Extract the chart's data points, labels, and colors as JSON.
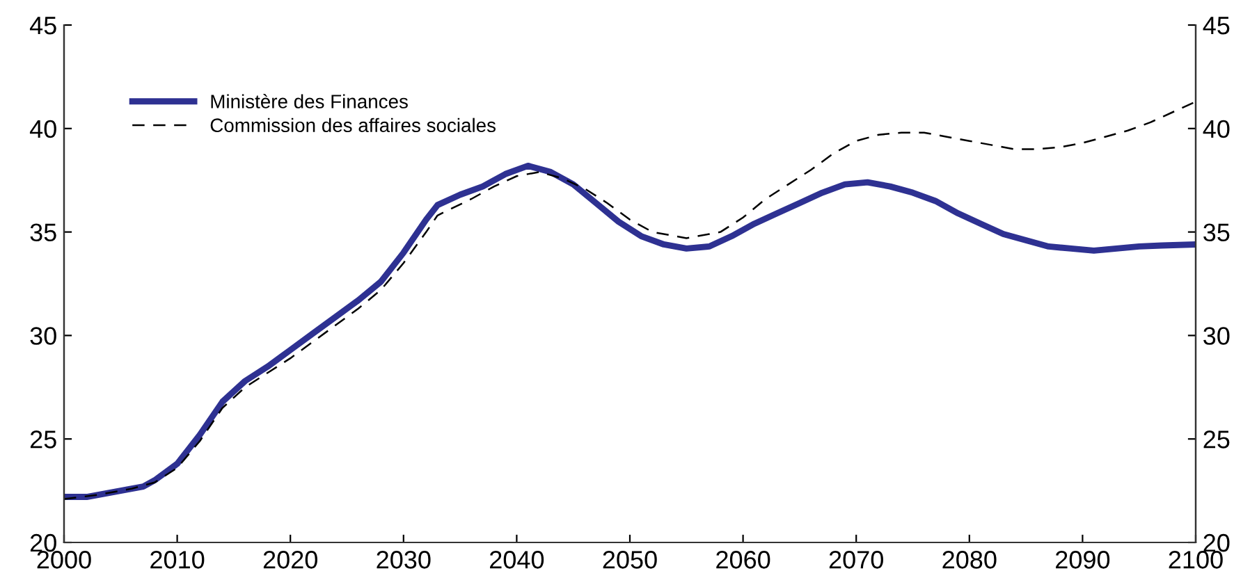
{
  "chart_data": {
    "type": "line",
    "xlim": [
      2000,
      2100
    ],
    "xticks": [
      2000,
      2010,
      2020,
      2030,
      2040,
      2050,
      2060,
      2070,
      2080,
      2090,
      2100
    ],
    "ylim": [
      20,
      45
    ],
    "yticks": [
      20,
      25,
      30,
      35,
      40,
      45
    ],
    "y2lim": [
      20,
      45
    ],
    "y2ticks": [
      20,
      25,
      30,
      35,
      40,
      45
    ],
    "grid": false,
    "legend": "top left",
    "marker": "none",
    "series": [
      {
        "name": "Ministère des Finances",
        "color": "#2e3192",
        "line_style": "solid",
        "x": [
          2000,
          2002,
          2004,
          2006,
          2007,
          2008,
          2010,
          2012,
          2014,
          2016,
          2018,
          2020,
          2022,
          2024,
          2026,
          2028,
          2030,
          2032,
          2033,
          2035,
          2037,
          2039,
          2041,
          2043,
          2045,
          2047,
          2049,
          2051,
          2053,
          2055,
          2057,
          2059,
          2061,
          2063,
          2065,
          2067,
          2069,
          2071,
          2073,
          2075,
          2077,
          2079,
          2081,
          2083,
          2085,
          2087,
          2089,
          2091,
          2093,
          2095,
          2097,
          2100
        ],
        "values": [
          22.2,
          22.2,
          22.4,
          22.6,
          22.7,
          23.0,
          23.8,
          25.2,
          26.8,
          27.8,
          28.5,
          29.3,
          30.1,
          30.9,
          31.7,
          32.6,
          34.0,
          35.6,
          36.3,
          36.8,
          37.2,
          37.8,
          38.2,
          37.9,
          37.3,
          36.4,
          35.5,
          34.8,
          34.4,
          34.2,
          34.3,
          34.8,
          35.4,
          35.9,
          36.4,
          36.9,
          37.3,
          37.4,
          37.2,
          36.9,
          36.5,
          35.9,
          35.4,
          34.9,
          34.6,
          34.3,
          34.2,
          34.1,
          34.2,
          34.3,
          34.35,
          34.4
        ]
      },
      {
        "name": "Commission des affaires sociales",
        "color": "#000000",
        "line_style": "dashed",
        "x": [
          2000,
          2003,
          2006,
          2008,
          2010,
          2012,
          2014,
          2016,
          2018,
          2020,
          2022,
          2024,
          2026,
          2028,
          2030,
          2032,
          2033,
          2036,
          2038,
          2040,
          2042,
          2044,
          2046,
          2048,
          2050,
          2052,
          2055,
          2058,
          2060,
          2062,
          2064,
          2066,
          2068,
          2070,
          2072,
          2074,
          2076,
          2078,
          2080,
          2082,
          2084,
          2086,
          2088,
          2090,
          2092,
          2094,
          2096,
          2098,
          2100
        ],
        "values": [
          22.1,
          22.3,
          22.6,
          22.9,
          23.6,
          24.9,
          26.5,
          27.5,
          28.2,
          28.9,
          29.7,
          30.5,
          31.3,
          32.2,
          33.5,
          35.0,
          35.8,
          36.6,
          37.2,
          37.7,
          37.9,
          37.6,
          37.1,
          36.4,
          35.6,
          35.0,
          34.7,
          35.0,
          35.7,
          36.6,
          37.3,
          38.0,
          38.8,
          39.4,
          39.7,
          39.8,
          39.8,
          39.6,
          39.4,
          39.2,
          39.0,
          39.0,
          39.1,
          39.3,
          39.6,
          39.9,
          40.3,
          40.8,
          41.3
        ]
      }
    ]
  }
}
